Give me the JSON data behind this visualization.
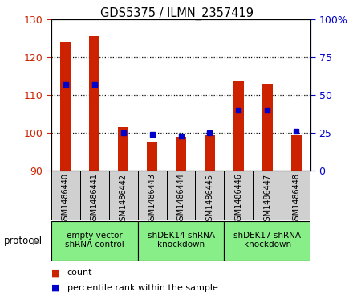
{
  "title": "GDS5375 / ILMN_2357419",
  "samples": [
    "GSM1486440",
    "GSM1486441",
    "GSM1486442",
    "GSM1486443",
    "GSM1486444",
    "GSM1486445",
    "GSM1486446",
    "GSM1486447",
    "GSM1486448"
  ],
  "counts": [
    124.0,
    125.5,
    101.5,
    97.5,
    99.0,
    99.5,
    113.5,
    113.0,
    99.5
  ],
  "percentiles": [
    57,
    57,
    25,
    24,
    23,
    25,
    40,
    40,
    26
  ],
  "ylim_left": [
    90,
    130
  ],
  "ylim_right": [
    0,
    100
  ],
  "yticks_left": [
    90,
    100,
    110,
    120,
    130
  ],
  "yticks_right": [
    0,
    25,
    50,
    75,
    100
  ],
  "bar_color": "#cc2200",
  "percentile_color": "#0000cc",
  "bar_width": 0.35,
  "protocols": [
    {
      "label": "empty vector\nshRNA control",
      "start": 0,
      "end": 3,
      "color": "#88ee88"
    },
    {
      "label": "shDEK14 shRNA\nknockdown",
      "start": 3,
      "end": 6,
      "color": "#88ee88"
    },
    {
      "label": "shDEK17 shRNA\nknockdown",
      "start": 6,
      "end": 9,
      "color": "#88ee88"
    }
  ],
  "protocol_label": "protocol",
  "legend_count_label": "count",
  "legend_pct_label": "percentile rank within the sample",
  "tick_label_color_left": "#cc2200",
  "tick_label_color_right": "#0000cc",
  "plot_bg": "#ffffff",
  "xtick_bg": "#d0d0d0"
}
